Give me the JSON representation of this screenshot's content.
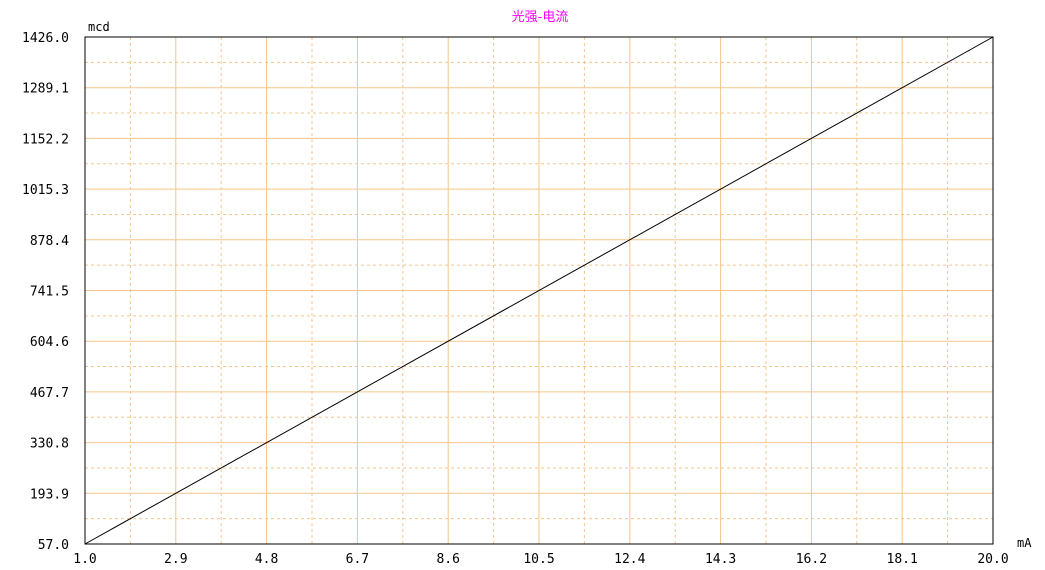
{
  "chart_data": {
    "type": "line",
    "title": "光强-电流",
    "xlabel": "mA",
    "ylabel": "mcd",
    "xlim": [
      1.0,
      20.0
    ],
    "ylim": [
      57.0,
      1426.0
    ],
    "x_tick_labels": [
      "1.0",
      "2.9",
      "4.8",
      "6.7",
      "8.6",
      "10.5",
      "12.4",
      "14.3",
      "16.2",
      "18.1",
      "20.0"
    ],
    "y_tick_labels": [
      "57.0",
      "193.9",
      "330.8",
      "467.7",
      "604.6",
      "741.5",
      "878.4",
      "1015.3",
      "1152.2",
      "1289.1",
      "1426.0"
    ],
    "grid": true,
    "series": [
      {
        "x": [
          1.0,
          20.0
        ],
        "y": [
          57.0,
          1426.0
        ]
      }
    ]
  },
  "colors": {
    "title": "#ff00ff",
    "grid": "#f5c58a",
    "line": "#000000",
    "axes": "#000000",
    "background": "#ffffff"
  }
}
